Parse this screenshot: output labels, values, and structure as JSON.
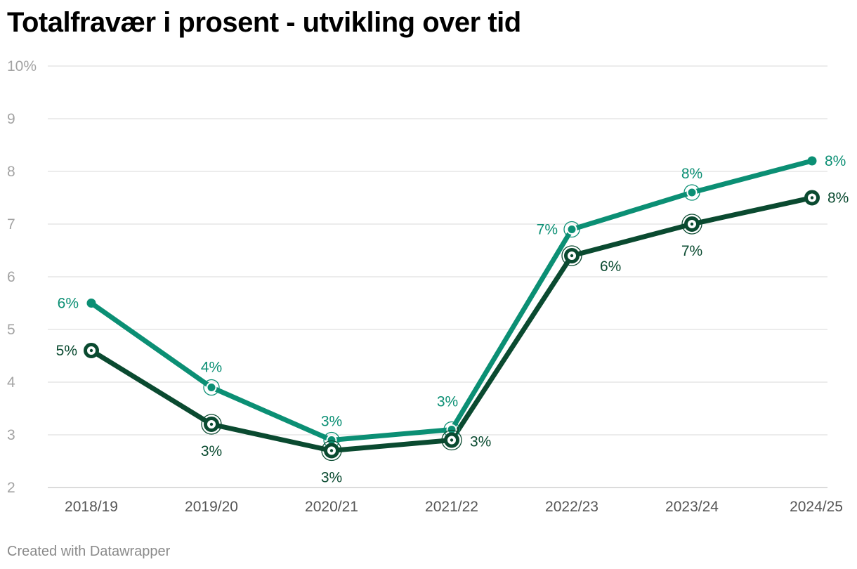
{
  "title": "Totalfravær i prosent - utvikling over tid",
  "footer": "Created with Datawrapper",
  "colors": {
    "series_a": "#0b8f74",
    "series_b": "#0a4a30",
    "grid": "#e0e0e0",
    "tick": "#a3a3a3",
    "xtick": "#555555"
  },
  "chart_data": {
    "type": "line",
    "title": "Totalfravær i prosent - utvikling over tid",
    "xlabel": "",
    "ylabel": "",
    "categories": [
      "2018/19",
      "2019/20",
      "2020/21",
      "2021/22",
      "2022/23",
      "2023/24",
      "2024/25"
    ],
    "ylim": [
      2,
      10
    ],
    "yticks": [
      2,
      3,
      4,
      5,
      6,
      7,
      8,
      9,
      10
    ],
    "ytick_labels": [
      "2",
      "3",
      "4",
      "5",
      "6",
      "7",
      "8",
      "9",
      "10%"
    ],
    "grid": true,
    "legend": "none",
    "series": [
      {
        "values": [
          5.5,
          3.9,
          2.9,
          3.1,
          6.9,
          7.6,
          8.2
        ],
        "labels": [
          "6%",
          "4%",
          "3%",
          "3%",
          "7%",
          "8%",
          "8%"
        ]
      },
      {
        "values": [
          4.6,
          3.2,
          2.7,
          2.9,
          6.4,
          7.0,
          7.5
        ],
        "labels": [
          "5%",
          "3%",
          "3%",
          "3%",
          "6%",
          "7%",
          "8%"
        ]
      }
    ]
  }
}
